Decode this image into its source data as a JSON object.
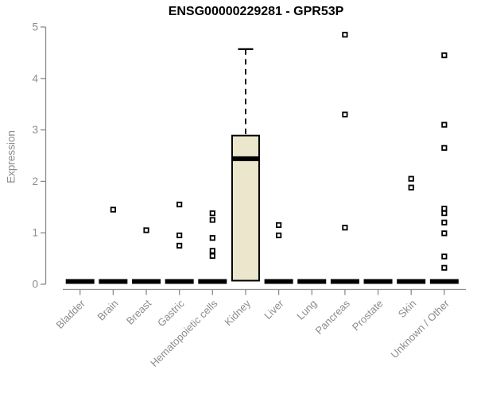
{
  "chart_data": {
    "type": "boxplot",
    "title": "ENSG00000229281 - GPR53P",
    "xlabel": "",
    "ylabel": "Expression",
    "ylim": [
      0,
      5
    ],
    "yticks": [
      0,
      1,
      2,
      3,
      4,
      5
    ],
    "grid": false,
    "legend": null,
    "categories": [
      "Bladder",
      "Brain",
      "Breast",
      "Gastric",
      "Hematopoietic cells",
      "Kidney",
      "Liver",
      "Lung",
      "Pancreas",
      "Prostate",
      "Skin",
      "Unknown / Other"
    ],
    "boxes": [
      {
        "category": "Bladder",
        "q1": 0,
        "median": 0,
        "q3": 0,
        "whisker_low": 0,
        "whisker_high": 0,
        "outliers": []
      },
      {
        "category": "Brain",
        "q1": 0,
        "median": 0,
        "q3": 0,
        "whisker_low": 0,
        "whisker_high": 0,
        "outliers": [
          1.45
        ]
      },
      {
        "category": "Breast",
        "q1": 0,
        "median": 0,
        "q3": 0,
        "whisker_low": 0,
        "whisker_high": 0,
        "outliers": [
          1.05
        ]
      },
      {
        "category": "Gastric",
        "q1": 0,
        "median": 0,
        "q3": 0,
        "whisker_low": 0,
        "whisker_high": 0,
        "outliers": [
          1.55,
          0.95,
          0.75
        ]
      },
      {
        "category": "Hematopoietic cells",
        "q1": 0,
        "median": 0,
        "q3": 0,
        "whisker_low": 0,
        "whisker_high": 0,
        "outliers": [
          1.38,
          1.25,
          0.9,
          0.65,
          0.55
        ]
      },
      {
        "category": "Kidney",
        "q1": 0.07,
        "median": 2.44,
        "q3": 2.89,
        "whisker_low": 0.07,
        "whisker_high": 4.57,
        "outliers": []
      },
      {
        "category": "Liver",
        "q1": 0,
        "median": 0,
        "q3": 0,
        "whisker_low": 0,
        "whisker_high": 0,
        "outliers": [
          1.15,
          0.95
        ]
      },
      {
        "category": "Lung",
        "q1": 0,
        "median": 0,
        "q3": 0,
        "whisker_low": 0,
        "whisker_high": 0,
        "outliers": []
      },
      {
        "category": "Pancreas",
        "q1": 0,
        "median": 0,
        "q3": 0,
        "whisker_low": 0,
        "whisker_high": 0,
        "outliers": [
          4.85,
          3.3,
          1.1
        ]
      },
      {
        "category": "Prostate",
        "q1": 0,
        "median": 0,
        "q3": 0,
        "whisker_low": 0,
        "whisker_high": 0,
        "outliers": []
      },
      {
        "category": "Skin",
        "q1": 0,
        "median": 0,
        "q3": 0,
        "whisker_low": 0,
        "whisker_high": 0,
        "outliers": [
          2.05,
          1.88
        ]
      },
      {
        "category": "Unknown / Other",
        "q1": 0,
        "median": 0,
        "q3": 0,
        "whisker_low": 0,
        "whisker_high": 0,
        "outliers": [
          4.45,
          3.1,
          2.65,
          1.47,
          1.38,
          1.2,
          0.99,
          0.54,
          0.32
        ]
      }
    ],
    "marker": "open-square",
    "colors": {
      "box_fill": "#ECE7CC",
      "box_stroke": "#000000",
      "median": "#000000",
      "zero_bar": "#000000",
      "axis": "#8C8C8C",
      "tick_label": "#8C8C8C",
      "title": "#000000",
      "outlier_fill": "#FFFFFF",
      "outlier_stroke": "#000000"
    }
  }
}
